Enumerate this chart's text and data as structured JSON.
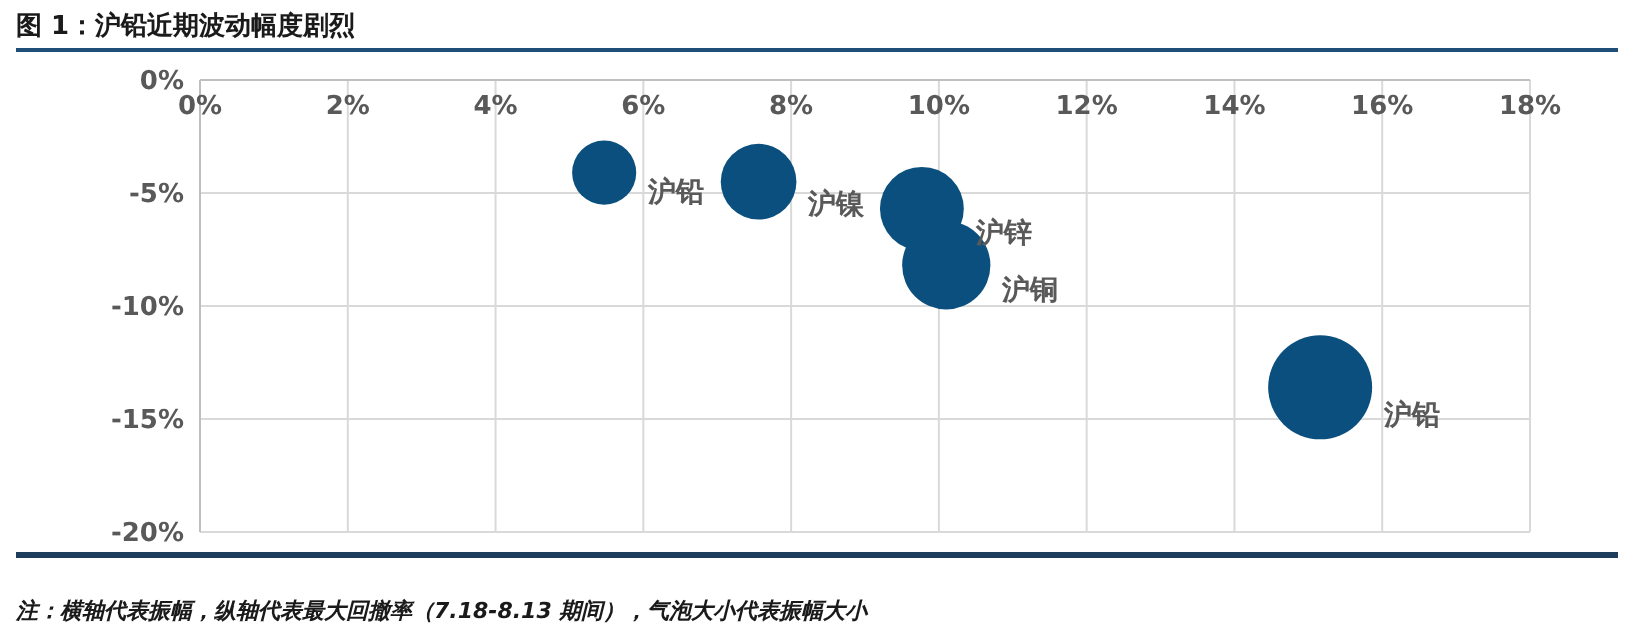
{
  "chart_data": {
    "type": "bubble",
    "title": "图 1：沪铅近期波动幅度剧烈",
    "x": [
      5.47,
      7.56,
      9.77,
      10.1,
      15.16
    ],
    "series": [
      {
        "color": "#0a4f7d",
        "values": [
          -4.1,
          -4.5,
          -5.7,
          -8.2,
          -13.6
        ],
        "sizes": [
          0.38,
          0.53,
          0.65,
          0.72,
          1
        ]
      }
    ],
    "xlim": [
      0,
      18
    ],
    "xticks": [
      {
        "value": 0,
        "label": "0%"
      },
      {
        "value": 2,
        "label": "2%"
      },
      {
        "value": 4,
        "label": "4%"
      },
      {
        "value": 6,
        "label": "6%"
      },
      {
        "value": 8,
        "label": "8%"
      },
      {
        "value": 10,
        "label": "10%"
      },
      {
        "value": 12,
        "label": "12%"
      },
      {
        "value": 14,
        "label": "14%"
      },
      {
        "value": 16,
        "label": "16%"
      },
      {
        "value": 18,
        "label": "18%"
      }
    ],
    "ylim": [
      -20,
      0
    ],
    "yticks": [
      {
        "value": 0,
        "label": "0%"
      },
      {
        "value": -5,
        "label": "-5%"
      },
      {
        "value": -10,
        "label": "-10%"
      },
      {
        "value": -15,
        "label": "-15%"
      },
      {
        "value": -20,
        "label": "-20%"
      }
    ],
    "grid": true,
    "marker": "circle",
    "annotations": [
      {
        "text": "沪铅",
        "x": 5.47,
        "y": -4.1
      },
      {
        "text": "沪镍",
        "x": 7.56,
        "y": -4.5
      },
      {
        "text": "沪锌",
        "x": 9.77,
        "y": -5.7
      },
      {
        "text": "沪铜",
        "x": 10.1,
        "y": -8.2
      },
      {
        "text": "沪铅",
        "x": 15.16,
        "y": -13.6
      },
      "注：横轴代表振幅，纵轴代表最大回撤率（7.18-8.13 期间），气泡大小代表振幅大小"
    ]
  }
}
